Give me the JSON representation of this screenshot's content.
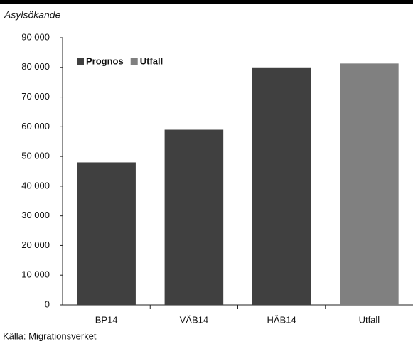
{
  "chart_data": {
    "type": "bar",
    "subtitle": "Asylsökande",
    "source": "Källa: Migrationsverket",
    "categories": [
      "BP14",
      "VÄB14",
      "HÄB14",
      "Utfall"
    ],
    "series": [
      {
        "name": "Prognos",
        "color": "#404040",
        "values": [
          48000,
          59000,
          80000,
          null
        ]
      },
      {
        "name": "Utfall",
        "color": "#808080",
        "values": [
          null,
          null,
          null,
          81300
        ]
      }
    ],
    "ylim": [
      0,
      90000
    ],
    "yticks": [
      0,
      {
        "value": 10000,
        "label": "10 000"
      },
      {
        "value": 20000,
        "label": "20 000"
      },
      {
        "value": 30000,
        "label": "30 000"
      },
      {
        "value": 40000,
        "label": "40 000"
      },
      {
        "value": 50000,
        "label": "50 000"
      },
      {
        "value": 60000,
        "label": "60 000"
      },
      {
        "value": 70000,
        "label": "70 000"
      },
      {
        "value": 80000,
        "label": "80 000"
      },
      {
        "value": 90000,
        "label": "90 000"
      }
    ],
    "legend": "top-left"
  }
}
